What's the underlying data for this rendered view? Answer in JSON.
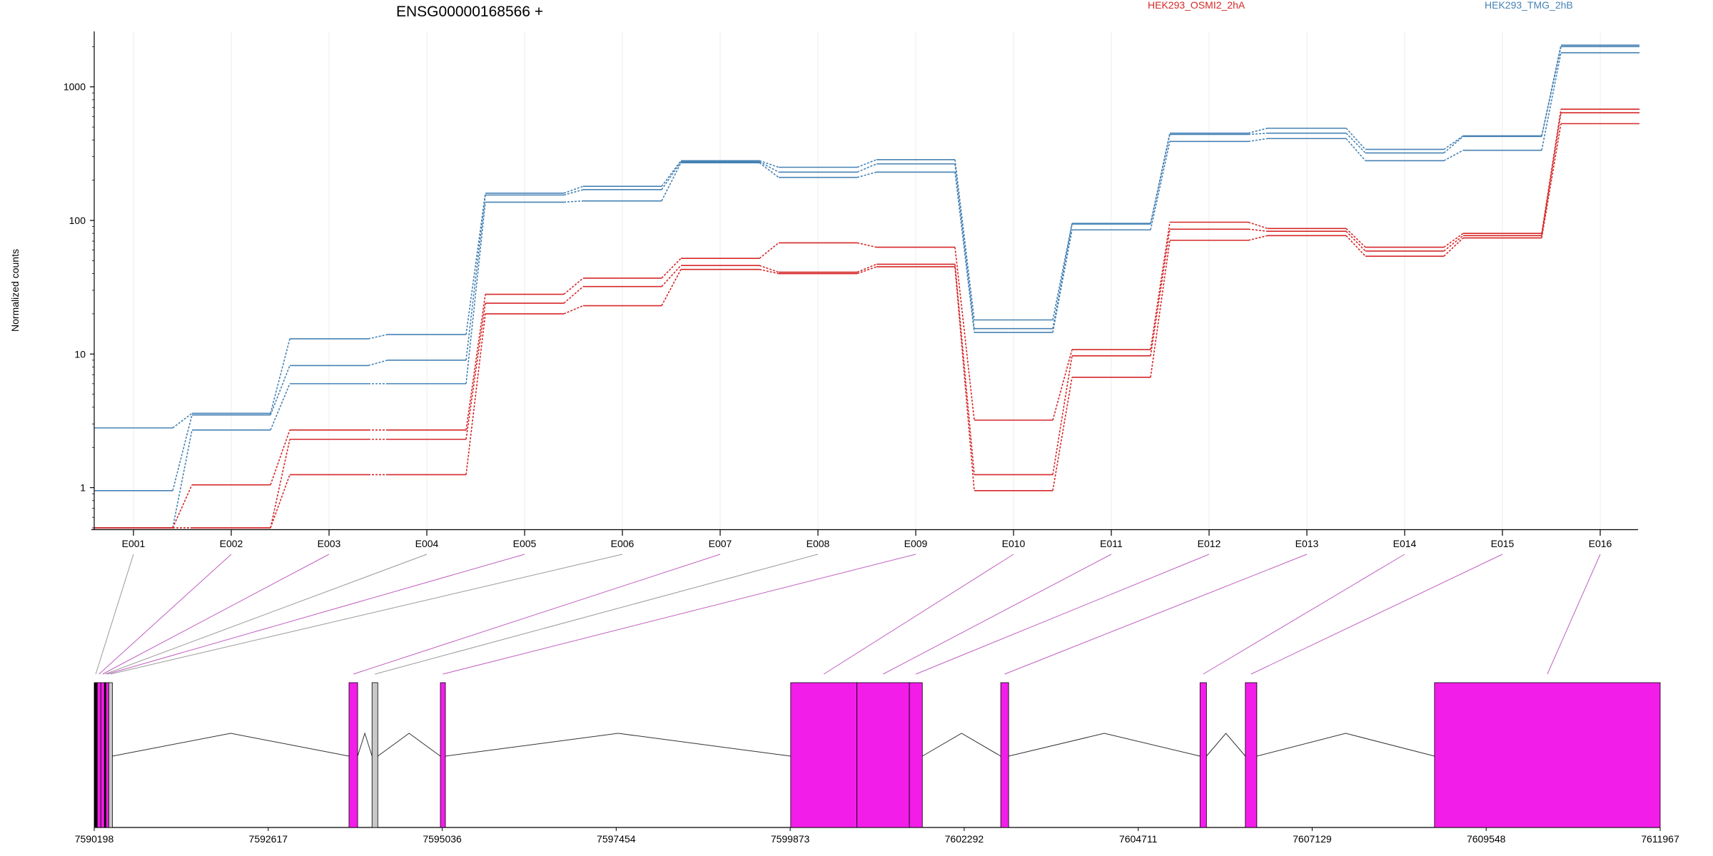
{
  "chart_data": {
    "type": "line",
    "title": "ENSG00000168566 +",
    "ylabel": "Normalized counts",
    "xlabel": "",
    "yscale": "log",
    "ylim": [
      0.5,
      2600
    ],
    "yticks": [
      1,
      10,
      100,
      1000
    ],
    "ytick_labels": [
      "1",
      "10",
      "100",
      "1000"
    ],
    "grid": "vertical",
    "exons": [
      "E001",
      "E002",
      "E003",
      "E004",
      "E005",
      "E006",
      "E007",
      "E008",
      "E009",
      "E010",
      "E011",
      "E012",
      "E013",
      "E014",
      "E015",
      "E016"
    ],
    "legend": [
      {
        "label": "HEK293_OSMI2_2hA",
        "color": "#d62728"
      },
      {
        "label": "HEK293_TMG_2hB",
        "color": "#4682b4"
      }
    ],
    "series": [
      {
        "group": "HEK293_TMG_2hB",
        "color": "#4682b4",
        "values": [
          2.8,
          3.6,
          13,
          14,
          160,
          180,
          280,
          250,
          285,
          18,
          95,
          450,
          490,
          340,
          430,
          2050
        ]
      },
      {
        "group": "HEK293_TMG_2hB",
        "color": "#4682b4",
        "values": [
          0.95,
          3.5,
          8.2,
          9,
          155,
          170,
          275,
          230,
          265,
          15.5,
          94,
          440,
          450,
          320,
          425,
          2000
        ]
      },
      {
        "group": "HEK293_TMG_2hB",
        "color": "#4682b4",
        "values": [
          0.5,
          2.7,
          6,
          6,
          137,
          140,
          270,
          210,
          230,
          14.5,
          85,
          390,
          410,
          280,
          335,
          1800
        ]
      },
      {
        "group": "HEK293_OSMI2_2hA",
        "color": "#d62728",
        "values": [
          0.5,
          1.05,
          2.7,
          2.7,
          28,
          37,
          52,
          68,
          63,
          3.2,
          10.8,
          97,
          87,
          63,
          80,
          680
        ]
      },
      {
        "group": "HEK293_OSMI2_2hA",
        "color": "#d62728",
        "values": [
          0.5,
          0.5,
          2.3,
          2.3,
          24,
          32,
          46,
          41,
          47,
          1.25,
          9.7,
          86,
          83,
          59,
          77,
          640
        ]
      },
      {
        "group": "HEK293_OSMI2_2hA",
        "color": "#d62728",
        "values": [
          0.5,
          0.5,
          1.25,
          1.25,
          20,
          23,
          43,
          40,
          45,
          0.95,
          6.7,
          71,
          77,
          54,
          74,
          530
        ]
      }
    ],
    "gene_model": {
      "coord_ticks": [
        7590198,
        7592617,
        7595036,
        7597454,
        7599873,
        7602292,
        7604711,
        7607129,
        7609548,
        7611967
      ],
      "coord_range": [
        7590198,
        7611967
      ],
      "exons": [
        {
          "id": "E001",
          "start": 7590198,
          "end": 7590240,
          "color": "#000000",
          "exon_index": 0
        },
        {
          "id": "E002",
          "start": 7590240,
          "end": 7590290,
          "color": "#f21de8",
          "exon_index": 1
        },
        {
          "id": "E003",
          "start": 7590290,
          "end": 7590340,
          "color": "#f21de8",
          "exon_index": 2
        },
        {
          "id": "E004",
          "start": 7590340,
          "end": 7590360,
          "color": "#000000",
          "exon_index": 3
        },
        {
          "id": "E005",
          "start": 7590360,
          "end": 7590400,
          "color": "#f21de8",
          "exon_index": 4
        },
        {
          "id": "E006",
          "start": 7590400,
          "end": 7590450,
          "color": "#c8c8c8",
          "exon_index": 5
        },
        {
          "id": "E007",
          "start": 7593740,
          "end": 7593860,
          "color": "#f21de8",
          "exon_index": 6
        },
        {
          "id": "E008",
          "start": 7594060,
          "end": 7594140,
          "color": "#c8c8c8",
          "exon_index": 7
        },
        {
          "id": "E009",
          "start": 7595010,
          "end": 7595080,
          "color": "#f21de8",
          "exon_index": 8
        },
        {
          "id": "E010",
          "start": 7599880,
          "end": 7600800,
          "color": "#f21de8",
          "exon_index": 9
        },
        {
          "id": "E011",
          "start": 7600800,
          "end": 7601530,
          "color": "#f21de8",
          "exon_index": 10
        },
        {
          "id": "E012",
          "start": 7601530,
          "end": 7601710,
          "color": "#f21de8",
          "exon_index": 11
        },
        {
          "id": "E013",
          "start": 7602800,
          "end": 7602910,
          "color": "#f21de8",
          "exon_index": 12
        },
        {
          "id": "E014",
          "start": 7605570,
          "end": 7605660,
          "color": "#f21de8",
          "exon_index": 13
        },
        {
          "id": "E015",
          "start": 7606200,
          "end": 7606360,
          "color": "#f21de8",
          "exon_index": 14
        },
        {
          "id": "E016",
          "start": 7608830,
          "end": 7611967,
          "color": "#f21de8",
          "exon_index": 15
        }
      ]
    }
  }
}
